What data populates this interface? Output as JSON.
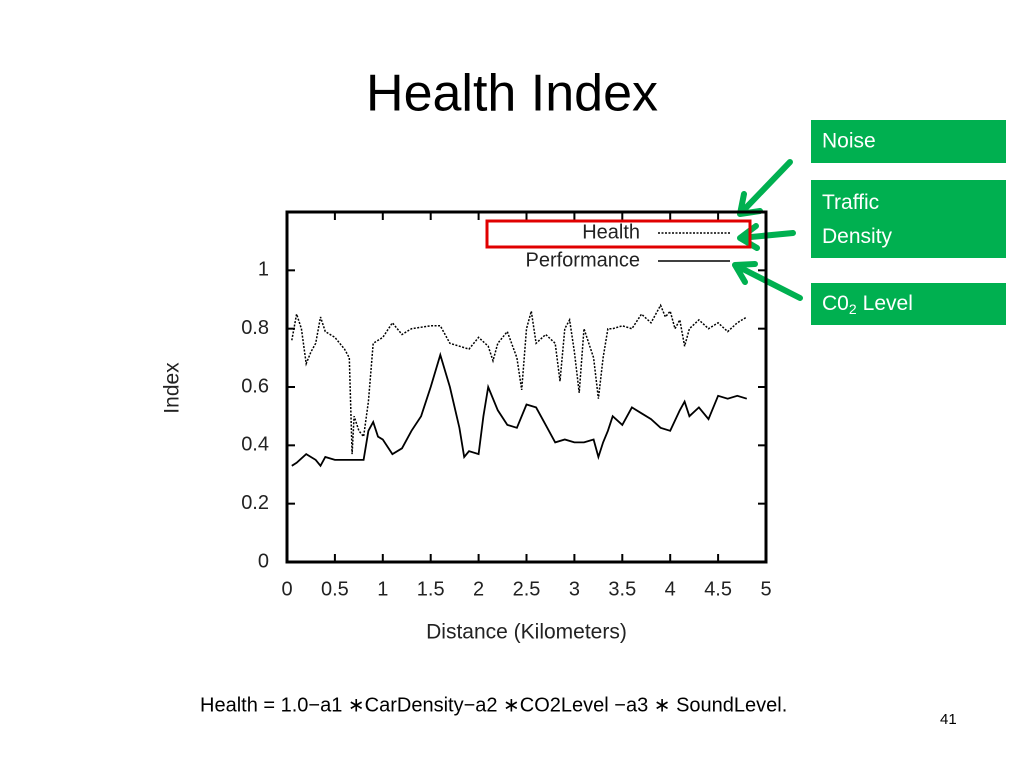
{
  "chart_data": {
    "type": "line",
    "title": "Health Index",
    "xlabel": "Distance (Kilometers)",
    "ylabel": "Index",
    "xlim": [
      0,
      5
    ],
    "ylim": [
      0,
      1.2
    ],
    "xticks": [
      0,
      0.5,
      1,
      1.5,
      2,
      2.5,
      3,
      3.5,
      4,
      4.5,
      5
    ],
    "yticks": [
      0,
      0.2,
      0.4,
      0.6,
      0.8,
      1
    ],
    "legend": "top-right",
    "series": [
      {
        "name": "Health",
        "color": "#000000",
        "dash": true,
        "x": [
          0.05,
          0.1,
          0.15,
          0.2,
          0.25,
          0.3,
          0.35,
          0.4,
          0.5,
          0.6,
          0.65,
          0.68,
          0.7,
          0.75,
          0.8,
          0.85,
          0.9,
          1.0,
          1.1,
          1.2,
          1.3,
          1.5,
          1.6,
          1.7,
          1.8,
          1.9,
          2.0,
          2.1,
          2.15,
          2.2,
          2.3,
          2.4,
          2.45,
          2.5,
          2.55,
          2.6,
          2.7,
          2.8,
          2.85,
          2.9,
          2.95,
          3.0,
          3.05,
          3.1,
          3.15,
          3.2,
          3.25,
          3.3,
          3.35,
          3.4,
          3.5,
          3.6,
          3.7,
          3.8,
          3.9,
          3.95,
          4.0,
          4.05,
          4.1,
          4.15,
          4.2,
          4.3,
          4.4,
          4.5,
          4.6,
          4.7,
          4.8
        ],
        "values": [
          0.76,
          0.85,
          0.8,
          0.68,
          0.72,
          0.75,
          0.84,
          0.79,
          0.77,
          0.73,
          0.7,
          0.37,
          0.5,
          0.45,
          0.43,
          0.55,
          0.75,
          0.77,
          0.82,
          0.78,
          0.8,
          0.81,
          0.81,
          0.75,
          0.74,
          0.73,
          0.77,
          0.74,
          0.69,
          0.75,
          0.79,
          0.7,
          0.59,
          0.8,
          0.86,
          0.75,
          0.78,
          0.75,
          0.62,
          0.8,
          0.83,
          0.72,
          0.58,
          0.8,
          0.75,
          0.7,
          0.56,
          0.7,
          0.8,
          0.8,
          0.81,
          0.8,
          0.85,
          0.82,
          0.88,
          0.84,
          0.86,
          0.8,
          0.83,
          0.74,
          0.8,
          0.83,
          0.8,
          0.82,
          0.79,
          0.82,
          0.84
        ]
      },
      {
        "name": "Performance",
        "color": "#000000",
        "dash": false,
        "x": [
          0.05,
          0.1,
          0.2,
          0.3,
          0.35,
          0.4,
          0.5,
          0.6,
          0.7,
          0.8,
          0.85,
          0.9,
          0.95,
          1.0,
          1.1,
          1.2,
          1.3,
          1.4,
          1.5,
          1.6,
          1.7,
          1.8,
          1.85,
          1.9,
          2.0,
          2.05,
          2.1,
          2.2,
          2.3,
          2.4,
          2.5,
          2.6,
          2.7,
          2.8,
          2.9,
          3.0,
          3.1,
          3.2,
          3.25,
          3.3,
          3.35,
          3.4,
          3.5,
          3.6,
          3.7,
          3.8,
          3.9,
          4.0,
          4.1,
          4.15,
          4.2,
          4.3,
          4.4,
          4.5,
          4.6,
          4.7,
          4.8
        ],
        "values": [
          0.33,
          0.34,
          0.37,
          0.35,
          0.33,
          0.36,
          0.35,
          0.35,
          0.35,
          0.35,
          0.45,
          0.48,
          0.43,
          0.42,
          0.37,
          0.39,
          0.45,
          0.5,
          0.6,
          0.71,
          0.6,
          0.46,
          0.36,
          0.38,
          0.37,
          0.5,
          0.6,
          0.52,
          0.47,
          0.46,
          0.54,
          0.53,
          0.47,
          0.41,
          0.42,
          0.41,
          0.41,
          0.42,
          0.36,
          0.41,
          0.45,
          0.5,
          0.47,
          0.53,
          0.51,
          0.49,
          0.46,
          0.45,
          0.52,
          0.55,
          0.5,
          0.53,
          0.49,
          0.57,
          0.56,
          0.57,
          0.56
        ]
      }
    ]
  },
  "callouts": [
    {
      "text": "Noise"
    },
    {
      "text": "Traffic Density"
    },
    {
      "text": "C0",
      "subscript": "2",
      "suffix": "Level"
    }
  ],
  "formula": "Health = 1.0−a1 ∗CarDensity−a2 ∗CO2Level −a3 ∗ SoundLevel.",
  "page_number": "41"
}
